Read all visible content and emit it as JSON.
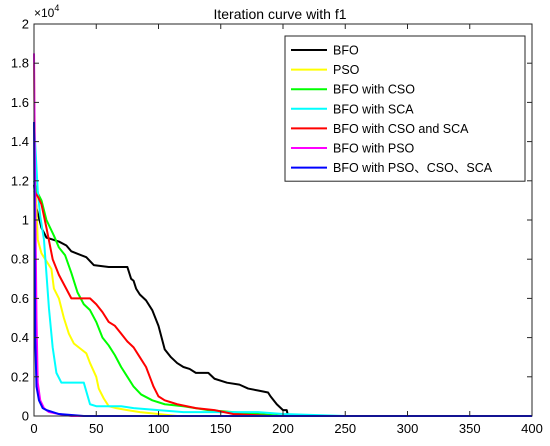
{
  "chart_data": {
    "type": "line",
    "title": "Iteration curve with f1",
    "xlabel": "",
    "ylabel": "",
    "xlim": [
      0,
      400
    ],
    "ylim": [
      0,
      20000
    ],
    "x_ticks": [
      0,
      50,
      100,
      150,
      200,
      250,
      300,
      350,
      400
    ],
    "y_ticks": [
      0,
      2000,
      4000,
      6000,
      8000,
      10000,
      12000,
      14000,
      16000,
      18000,
      20000
    ],
    "y_tick_labels": [
      "0",
      "0.2",
      "0.4",
      "0.6",
      "0.8",
      "1",
      "1.2",
      "1.4",
      "1.6",
      "1.8",
      "2"
    ],
    "y_exponent_base": "×10",
    "y_exponent_power": "4",
    "grid": false,
    "legend_position": "top-right",
    "series": [
      {
        "name": "BFO",
        "color": "#000000",
        "points": [
          [
            0,
            11800
          ],
          [
            2,
            10600
          ],
          [
            6,
            9600
          ],
          [
            10,
            9100
          ],
          [
            15,
            9000
          ],
          [
            20,
            8900
          ],
          [
            26,
            8700
          ],
          [
            30,
            8400
          ],
          [
            42,
            8100
          ],
          [
            48,
            7700
          ],
          [
            60,
            7600
          ],
          [
            75,
            7600
          ],
          [
            78,
            7000
          ],
          [
            80,
            6900
          ],
          [
            82,
            6500
          ],
          [
            85,
            6200
          ],
          [
            90,
            5900
          ],
          [
            95,
            5400
          ],
          [
            100,
            4600
          ],
          [
            105,
            3400
          ],
          [
            110,
            3000
          ],
          [
            115,
            2700
          ],
          [
            120,
            2500
          ],
          [
            125,
            2400
          ],
          [
            130,
            2200
          ],
          [
            140,
            2200
          ],
          [
            145,
            1900
          ],
          [
            155,
            1700
          ],
          [
            165,
            1600
          ],
          [
            172,
            1400
          ],
          [
            180,
            1300
          ],
          [
            188,
            1200
          ],
          [
            190,
            1000
          ],
          [
            195,
            600
          ],
          [
            200,
            300
          ],
          [
            203,
            300
          ],
          [
            204,
            0
          ],
          [
            400,
            0
          ]
        ]
      },
      {
        "name": "PSO",
        "color": "#ffff00",
        "points": [
          [
            0,
            18000
          ],
          [
            1,
            12000
          ],
          [
            3,
            9000
          ],
          [
            6,
            8300
          ],
          [
            10,
            7900
          ],
          [
            14,
            7500
          ],
          [
            16,
            6500
          ],
          [
            20,
            6000
          ],
          [
            24,
            5000
          ],
          [
            28,
            4200
          ],
          [
            32,
            3700
          ],
          [
            38,
            3400
          ],
          [
            42,
            3200
          ],
          [
            45,
            2700
          ],
          [
            50,
            2000
          ],
          [
            52,
            1400
          ],
          [
            56,
            900
          ],
          [
            60,
            500
          ],
          [
            66,
            400
          ],
          [
            75,
            300
          ],
          [
            85,
            200
          ],
          [
            100,
            100
          ],
          [
            115,
            0
          ],
          [
            400,
            0
          ]
        ]
      },
      {
        "name": "BFO with CSO",
        "color": "#00ff00",
        "points": [
          [
            0,
            12000
          ],
          [
            2,
            11500
          ],
          [
            6,
            11000
          ],
          [
            10,
            10000
          ],
          [
            16,
            9200
          ],
          [
            20,
            8600
          ],
          [
            25,
            8200
          ],
          [
            30,
            7300
          ],
          [
            35,
            6300
          ],
          [
            40,
            5700
          ],
          [
            45,
            5400
          ],
          [
            50,
            4800
          ],
          [
            55,
            4000
          ],
          [
            60,
            3600
          ],
          [
            65,
            3100
          ],
          [
            70,
            2500
          ],
          [
            75,
            2000
          ],
          [
            80,
            1500
          ],
          [
            86,
            1100
          ],
          [
            95,
            800
          ],
          [
            105,
            600
          ],
          [
            120,
            500
          ],
          [
            140,
            300
          ],
          [
            160,
            200
          ],
          [
            180,
            100
          ],
          [
            200,
            0
          ],
          [
            400,
            0
          ]
        ]
      },
      {
        "name": "BFO with SCA",
        "color": "#00ffff",
        "points": [
          [
            0,
            15000
          ],
          [
            3,
            11500
          ],
          [
            5,
            10200
          ],
          [
            8,
            9000
          ],
          [
            12,
            5500
          ],
          [
            15,
            3500
          ],
          [
            18,
            2200
          ],
          [
            22,
            1700
          ],
          [
            30,
            1700
          ],
          [
            40,
            1700
          ],
          [
            45,
            600
          ],
          [
            50,
            500
          ],
          [
            60,
            500
          ],
          [
            70,
            500
          ],
          [
            80,
            400
          ],
          [
            100,
            300
          ],
          [
            120,
            200
          ],
          [
            145,
            200
          ],
          [
            165,
            200
          ],
          [
            180,
            200
          ],
          [
            200,
            100
          ],
          [
            250,
            0
          ],
          [
            400,
            0
          ]
        ]
      },
      {
        "name": "BFO with CSO and SCA",
        "color": "#ff0000",
        "points": [
          [
            0,
            11500
          ],
          [
            3,
            11200
          ],
          [
            6,
            10800
          ],
          [
            10,
            9600
          ],
          [
            15,
            8000
          ],
          [
            20,
            7200
          ],
          [
            25,
            6600
          ],
          [
            30,
            6000
          ],
          [
            45,
            6000
          ],
          [
            50,
            5700
          ],
          [
            55,
            5300
          ],
          [
            60,
            4800
          ],
          [
            65,
            4600
          ],
          [
            70,
            4200
          ],
          [
            75,
            3800
          ],
          [
            80,
            3500
          ],
          [
            85,
            3000
          ],
          [
            90,
            2500
          ],
          [
            93,
            2000
          ],
          [
            96,
            1500
          ],
          [
            100,
            1000
          ],
          [
            105,
            800
          ],
          [
            115,
            600
          ],
          [
            130,
            400
          ],
          [
            145,
            300
          ],
          [
            160,
            100
          ],
          [
            175,
            50
          ],
          [
            190,
            0
          ],
          [
            400,
            0
          ]
        ]
      },
      {
        "name": "BFO with PSO",
        "color": "#ff00ff",
        "points": [
          [
            0,
            18500
          ],
          [
            1,
            11000
          ],
          [
            2,
            5000
          ],
          [
            3,
            1700
          ],
          [
            5,
            800
          ],
          [
            8,
            400
          ],
          [
            12,
            200
          ],
          [
            20,
            100
          ],
          [
            30,
            0
          ],
          [
            400,
            0
          ]
        ]
      },
      {
        "name": "BFO with PSO、CSO、SCA",
        "color": "#0000ff",
        "points": [
          [
            0,
            15000
          ],
          [
            0.5,
            9000
          ],
          [
            1,
            4000
          ],
          [
            2,
            1500
          ],
          [
            4,
            800
          ],
          [
            7,
            400
          ],
          [
            10,
            300
          ],
          [
            15,
            200
          ],
          [
            20,
            100
          ],
          [
            30,
            50
          ],
          [
            40,
            0
          ],
          [
            400,
            0
          ]
        ]
      }
    ]
  }
}
